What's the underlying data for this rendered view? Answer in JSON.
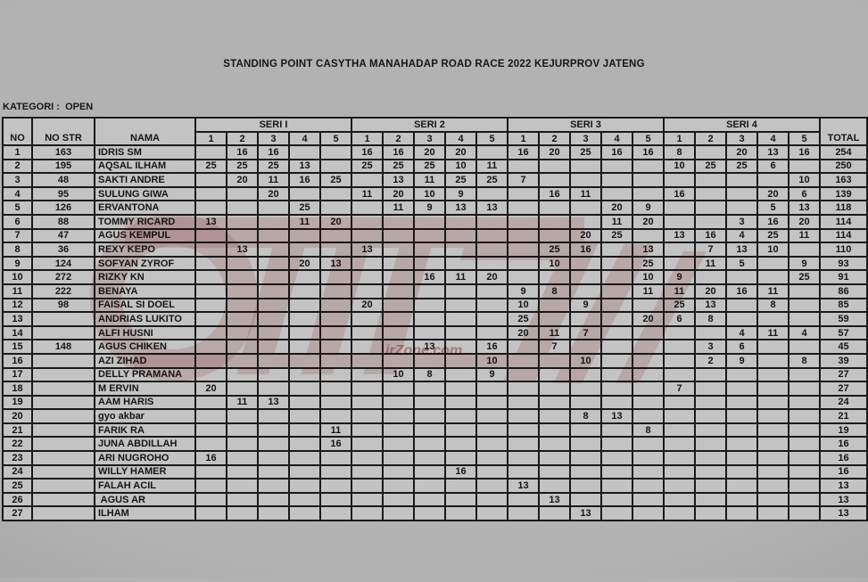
{
  "title": "STANDING POINT CASYTHA MANAHADAP ROAD RACE 2022 KEJURPROV JATENG",
  "category_line": "KATEGORI :  OPEN",
  "colors": {
    "cell_gray": "#c3c3c3",
    "background_gray": "#aeaeae",
    "border_black": "#1a1a1a",
    "watermark_red": "#b03030"
  },
  "watermark": {
    "text": "irZone.com"
  },
  "table": {
    "headers": {
      "no": "NO",
      "no_str": "NO STR",
      "nama": "NAMA",
      "total": "TOTAL",
      "seri_groups": [
        "SERI I",
        "SERI 2",
        "SERI 3",
        "SERI 4"
      ],
      "sub_cols": [
        "1",
        "2",
        "3",
        "4",
        "5"
      ]
    },
    "rows": [
      {
        "no": "1",
        "str": "163",
        "name": "IDRIS SM",
        "pts": [
          "",
          "16",
          "16",
          "",
          "",
          "16",
          "16",
          "20",
          "20",
          "",
          "16",
          "20",
          "25",
          "16",
          "16",
          "8",
          "",
          "20",
          "13",
          "16"
        ],
        "total": "254"
      },
      {
        "no": "2",
        "str": "195",
        "name": "AQSAL ILHAM",
        "pts": [
          "25",
          "25",
          "25",
          "13",
          "",
          "25",
          "25",
          "25",
          "10",
          "11",
          "",
          "",
          "",
          "",
          "",
          "10",
          "25",
          "25",
          "6",
          ""
        ],
        "total": "250"
      },
      {
        "no": "3",
        "str": "48",
        "name": "SAKTI ANDRE",
        "pts": [
          "",
          "20",
          "11",
          "16",
          "25",
          "",
          "13",
          "11",
          "25",
          "25",
          "7",
          "",
          "",
          "",
          "",
          "",
          "",
          "",
          "",
          "10"
        ],
        "total": "163"
      },
      {
        "no": "4",
        "str": "95",
        "name": "SULUNG GIWA",
        "pts": [
          "",
          "",
          "20",
          "",
          "",
          "11",
          "20",
          "10",
          "9",
          "",
          "",
          "16",
          "11",
          "",
          "",
          "16",
          "",
          "",
          "20",
          "6"
        ],
        "total": "139"
      },
      {
        "no": "5",
        "str": "126",
        "name": "ERVANTONA",
        "pts": [
          "",
          "",
          "",
          "25",
          "",
          "",
          "11",
          "9",
          "13",
          "13",
          "",
          "",
          "",
          "20",
          "9",
          "",
          "",
          "",
          "5",
          "13"
        ],
        "total": "118"
      },
      {
        "no": "6",
        "str": "88",
        "name": "TOMMY RICARD",
        "pts": [
          "13",
          "",
          "",
          "11",
          "20",
          "",
          "",
          "",
          "",
          "",
          "",
          "",
          "",
          "11",
          "20",
          "",
          "",
          "3",
          "16",
          "20"
        ],
        "total": "114"
      },
      {
        "no": "7",
        "str": "47",
        "name": "AGUS KEMPUL",
        "pts": [
          "",
          "",
          "",
          "",
          "",
          "",
          "",
          "",
          "",
          "",
          "",
          "",
          "20",
          "25",
          "",
          "13",
          "16",
          "4",
          "25",
          "11"
        ],
        "total": "114"
      },
      {
        "no": "8",
        "str": "36",
        "name": "REXY KEPO",
        "pts": [
          "",
          "13",
          "",
          "",
          "",
          "13",
          "",
          "",
          "",
          "",
          "",
          "25",
          "16",
          "",
          "13",
          "",
          "7",
          "13",
          "10",
          ""
        ],
        "total": "110"
      },
      {
        "no": "9",
        "str": "124",
        "name": "SOFYAN ZYROF",
        "pts": [
          "",
          "",
          "",
          "20",
          "13",
          "",
          "",
          "",
          "",
          "",
          "",
          "10",
          "",
          "",
          "25",
          "",
          "11",
          "5",
          "",
          "9"
        ],
        "total": "93"
      },
      {
        "no": "10",
        "str": "272",
        "name": "RIZKY KN",
        "pts": [
          "",
          "",
          "",
          "",
          "",
          "",
          "",
          "16",
          "11",
          "20",
          "",
          "",
          "",
          "",
          "10",
          "9",
          "",
          "",
          "",
          "25"
        ],
        "total": "91"
      },
      {
        "no": "11",
        "str": "222",
        "name": "BENAYA",
        "pts": [
          "",
          "",
          "",
          "",
          "",
          "",
          "",
          "",
          "",
          "",
          "9",
          "8",
          "",
          "",
          "11",
          "11",
          "20",
          "16",
          "11",
          ""
        ],
        "total": "86"
      },
      {
        "no": "12",
        "str": "98",
        "name": "FAISAL SI DOEL",
        "pts": [
          "",
          "",
          "",
          "",
          "",
          "20",
          "",
          "",
          "",
          "",
          "10",
          "",
          "9",
          "",
          "",
          "25",
          "13",
          "",
          "8",
          ""
        ],
        "total": "85"
      },
      {
        "no": "13",
        "str": "",
        "name": "ANDRIAS LUKITO",
        "pts": [
          "",
          "",
          "",
          "",
          "",
          "",
          "",
          "",
          "",
          "",
          "25",
          "",
          "",
          "",
          "20",
          "6",
          "8",
          "",
          "",
          ""
        ],
        "total": "59"
      },
      {
        "no": "14",
        "str": "",
        "name": "ALFI HUSNI",
        "pts": [
          "",
          "",
          "",
          "",
          "",
          "",
          "",
          "",
          "",
          "",
          "20",
          "11",
          "7",
          "",
          "",
          "",
          "",
          "4",
          "11",
          "4"
        ],
        "total": "57"
      },
      {
        "no": "15",
        "str": "148",
        "name": "AGUS CHIKEN",
        "pts": [
          "",
          "",
          "",
          "",
          "",
          "",
          "",
          "13",
          "",
          "16",
          "",
          "7",
          "",
          "",
          "",
          "",
          "3",
          "6",
          "",
          ""
        ],
        "total": "45"
      },
      {
        "no": "16",
        "str": "",
        "name": "AZI ZIHAD",
        "pts": [
          "",
          "",
          "",
          "",
          "",
          "",
          "",
          "",
          "",
          "10",
          "",
          "",
          "10",
          "",
          "",
          "",
          "2",
          "9",
          "",
          "8"
        ],
        "total": "39"
      },
      {
        "no": "17",
        "str": "",
        "name": "DELLY PRAMANA",
        "pts": [
          "",
          "",
          "",
          "",
          "",
          "",
          "10",
          "8",
          "",
          "9",
          "",
          "",
          "",
          "",
          "",
          "",
          "",
          "",
          "",
          ""
        ],
        "total": "27"
      },
      {
        "no": "18",
        "str": "",
        "name": "M ERVIN",
        "pts": [
          "20",
          "",
          "",
          "",
          "",
          "",
          "",
          "",
          "",
          "",
          "",
          "",
          "",
          "",
          "",
          "7",
          "",
          "",
          "",
          ""
        ],
        "total": "27"
      },
      {
        "no": "19",
        "str": "",
        "name": "AAM HARIS",
        "pts": [
          "",
          "11",
          "13",
          "",
          "",
          "",
          "",
          "",
          "",
          "",
          "",
          "",
          "",
          "",
          "",
          "",
          "",
          "",
          "",
          ""
        ],
        "total": "24"
      },
      {
        "no": "20",
        "str": "",
        "name": "gyo akbar",
        "pts": [
          "",
          "",
          "",
          "",
          "",
          "",
          "",
          "",
          "",
          "",
          "",
          "",
          "8",
          "13",
          "",
          "",
          "",
          "",
          "",
          ""
        ],
        "total": "21"
      },
      {
        "no": "21",
        "str": "",
        "name": "FARIK RA",
        "pts": [
          "",
          "",
          "",
          "",
          "11",
          "",
          "",
          "",
          "",
          "",
          "",
          "",
          "",
          "",
          "8",
          "",
          "",
          "",
          "",
          ""
        ],
        "total": "19"
      },
      {
        "no": "22",
        "str": "",
        "name": "JUNA ABDILLAH",
        "pts": [
          "",
          "",
          "",
          "",
          "16",
          "",
          "",
          "",
          "",
          "",
          "",
          "",
          "",
          "",
          "",
          "",
          "",
          "",
          "",
          ""
        ],
        "total": "16"
      },
      {
        "no": "23",
        "str": "",
        "name": "ARI NUGROHO",
        "pts": [
          "16",
          "",
          "",
          "",
          "",
          "",
          "",
          "",
          "",
          "",
          "",
          "",
          "",
          "",
          "",
          "",
          "",
          "",
          "",
          ""
        ],
        "total": "16"
      },
      {
        "no": "24",
        "str": "",
        "name": "WILLY HAMER",
        "pts": [
          "",
          "",
          "",
          "",
          "",
          "",
          "",
          "",
          "16",
          "",
          "",
          "",
          "",
          "",
          "",
          "",
          "",
          "",
          "",
          ""
        ],
        "total": "16"
      },
      {
        "no": "25",
        "str": "",
        "name": "FALAH ACIL",
        "pts": [
          "",
          "",
          "",
          "",
          "",
          "",
          "",
          "",
          "",
          "",
          "13",
          "",
          "",
          "",
          "",
          "",
          "",
          "",
          "",
          ""
        ],
        "total": "13"
      },
      {
        "no": "26",
        "str": "",
        "name": " AGUS AR",
        "pts": [
          "",
          "",
          "",
          "",
          "",
          "",
          "",
          "",
          "",
          "",
          "",
          "13",
          "",
          "",
          "",
          "",
          "",
          "",
          "",
          ""
        ],
        "total": "13"
      },
      {
        "no": "27",
        "str": "",
        "name": "ILHAM",
        "pts": [
          "",
          "",
          "",
          "",
          "",
          "",
          "",
          "",
          "",
          "",
          "",
          "",
          "13",
          "",
          "",
          "",
          "",
          "",
          "",
          ""
        ],
        "total": "13"
      }
    ]
  }
}
